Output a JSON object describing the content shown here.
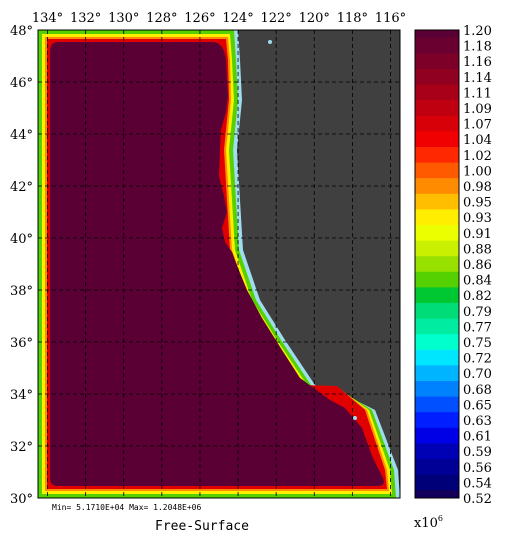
{
  "chart_data": {
    "type": "heatmap",
    "title": "Free-Surface",
    "stats": "Min= 5.1710E+04   Max= 1.2048E+06",
    "x_ticks": [
      "134°",
      "132°",
      "130°",
      "128°",
      "126°",
      "124°",
      "122°",
      "120°",
      "118°",
      "116°"
    ],
    "y_ticks": [
      "48°",
      "46°",
      "44°",
      "42°",
      "40°",
      "38°",
      "36°",
      "34°",
      "32°",
      "30°"
    ],
    "xlim": [
      -134.5,
      -115.5
    ],
    "ylim": [
      30,
      48
    ],
    "grid": true,
    "colorbar": {
      "multiplier": "x10",
      "exponent": "6",
      "labels": [
        "1.20",
        "1.18",
        "1.16",
        "1.14",
        "1.11",
        "1.09",
        "1.07",
        "1.04",
        "1.02",
        "1.00",
        "0.98",
        "0.95",
        "0.93",
        "0.91",
        "0.88",
        "0.86",
        "0.84",
        "0.82",
        "0.79",
        "0.77",
        "0.75",
        "0.72",
        "0.70",
        "0.68",
        "0.65",
        "0.63",
        "0.61",
        "0.59",
        "0.56",
        "0.54",
        "0.52"
      ],
      "colors": [
        "#5a0035",
        "#6a0030",
        "#7d0028",
        "#900020",
        "#a80018",
        "#bf0010",
        "#d80008",
        "#f00000",
        "#ff2800",
        "#ff5a00",
        "#ff8c00",
        "#ffbe00",
        "#ffee00",
        "#ecff00",
        "#c8f000",
        "#98e000",
        "#55d000",
        "#00c832",
        "#00dc78",
        "#00eca0",
        "#00ffcc",
        "#00e6ff",
        "#00b4ff",
        "#0082ff",
        "#0050ff",
        "#001eff",
        "#0000e6",
        "#0000b4",
        "#000096",
        "#000078",
        "#14005a"
      ]
    },
    "land_color": "#404040",
    "ocean_max_color": "#5a0035"
  }
}
